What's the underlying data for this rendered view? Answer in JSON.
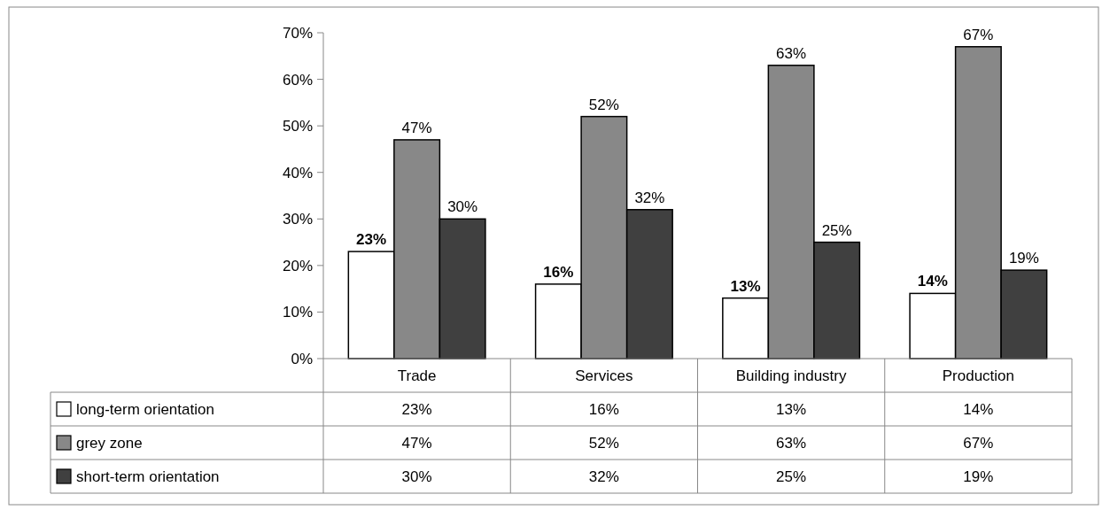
{
  "chart_data": {
    "type": "bar",
    "categories": [
      "Trade",
      "Services",
      "Building industry",
      "Production"
    ],
    "series": [
      {
        "name": "long-term orientation",
        "color": "#ffffff",
        "values": [
          23,
          16,
          13,
          14
        ],
        "value_labels": [
          "23%",
          "16%",
          "13%",
          "14%"
        ]
      },
      {
        "name": "grey zone",
        "color": "#888888",
        "values": [
          47,
          52,
          63,
          67
        ],
        "value_labels": [
          "47%",
          "52%",
          "63%",
          "67%"
        ]
      },
      {
        "name": "short-term orientation",
        "color": "#404040",
        "values": [
          30,
          32,
          25,
          19
        ],
        "value_labels": [
          "30%",
          "32%",
          "25%",
          "19%"
        ]
      }
    ],
    "ylim": [
      0,
      70
    ],
    "yticks": [
      {
        "value": 0,
        "label": "0%"
      },
      {
        "value": 10,
        "label": "10%"
      },
      {
        "value": 20,
        "label": "20%"
      },
      {
        "value": 30,
        "label": "30%"
      },
      {
        "value": 40,
        "label": "40%"
      },
      {
        "value": 50,
        "label": "50%"
      },
      {
        "value": 60,
        "label": "60%"
      },
      {
        "value": 70,
        "label": "70%"
      }
    ],
    "legend": "bottom"
  }
}
